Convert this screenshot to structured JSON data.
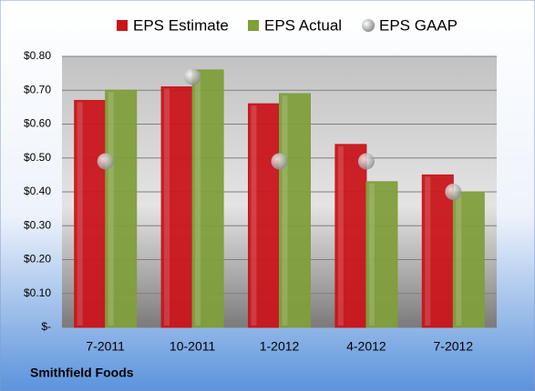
{
  "chart_data": {
    "type": "bar",
    "title": "Smithfield Foods",
    "categories": [
      "7-2011",
      "10-2011",
      "1-2012",
      "4-2012",
      "7-2012"
    ],
    "series": [
      {
        "name": "EPS Estimate",
        "color": "#c8151b",
        "type": "bar",
        "values": [
          0.67,
          0.71,
          0.66,
          0.54,
          0.45
        ]
      },
      {
        "name": "EPS Actual",
        "color": "#7f9e3c",
        "type": "bar",
        "values": [
          0.7,
          0.76,
          0.69,
          0.43,
          0.4
        ]
      },
      {
        "name": "EPS GAAP",
        "color": "#a6a6a6",
        "type": "scatter",
        "values": [
          0.49,
          0.74,
          0.49,
          0.49,
          0.4
        ]
      }
    ],
    "ylim": [
      0,
      0.8
    ],
    "yticks": [
      {
        "value": 0,
        "label": "$-"
      },
      {
        "value": 0.1,
        "label": "$0.10"
      },
      {
        "value": 0.2,
        "label": "$0.20"
      },
      {
        "value": 0.3,
        "label": "$0.30"
      },
      {
        "value": 0.4,
        "label": "$0.40"
      },
      {
        "value": 0.5,
        "label": "$0.50"
      },
      {
        "value": 0.6,
        "label": "$0.60"
      },
      {
        "value": 0.7,
        "label": "$0.70"
      },
      {
        "value": 0.8,
        "label": "$0.80"
      }
    ],
    "grid": true,
    "legend": "top"
  }
}
